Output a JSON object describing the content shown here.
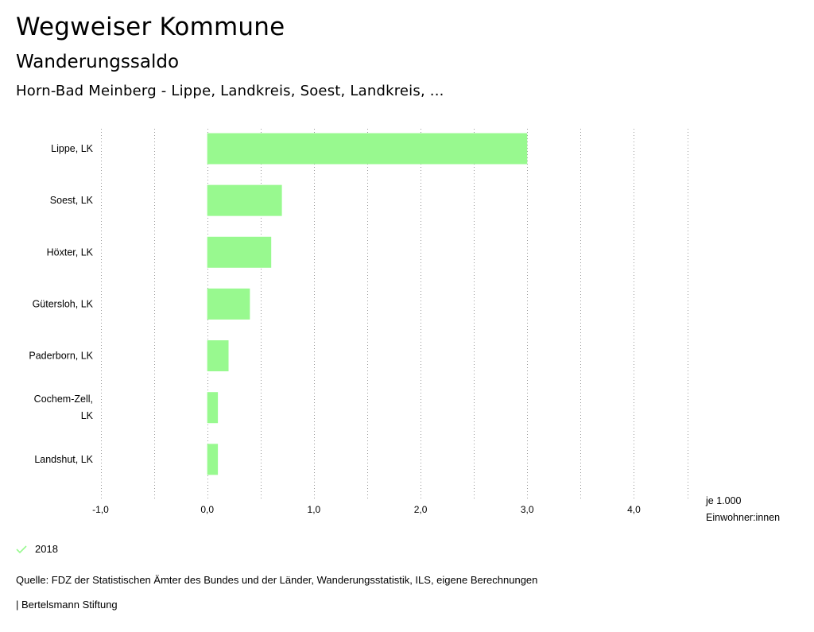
{
  "header": {
    "title": "Wegweiser Kommune",
    "subtitle": "Wanderungssaldo",
    "region": "Horn-Bad Meinberg - Lippe, Landkreis, Soest, Landkreis, ..."
  },
  "colors": {
    "bar": "#98f98f",
    "grid": "#999999",
    "text": "#000000"
  },
  "chart_data": {
    "type": "bar",
    "orientation": "horizontal",
    "title": "Wanderungssaldo",
    "categories": [
      [
        "Lippe, LK"
      ],
      [
        "Soest, LK"
      ],
      [
        "Höxter, LK"
      ],
      [
        "Gütersloh, LK"
      ],
      [
        "Paderborn, LK"
      ],
      [
        "Cochem-Zell,",
        "LK"
      ],
      [
        "Landshut, LK"
      ]
    ],
    "series": [
      {
        "name": "2018",
        "values": [
          3.0,
          0.7,
          0.6,
          0.4,
          0.2,
          0.1,
          0.1
        ]
      }
    ],
    "xlim": [
      -1.0,
      4.5
    ],
    "xticks": [
      -1.0,
      0.0,
      1.0,
      2.0,
      3.0,
      4.0
    ],
    "xtick_labels": [
      "-1,0",
      "0,0",
      "1,0",
      "2,0",
      "3,0",
      "4,0"
    ],
    "minor_grid_step": 0.5,
    "xlabel": [
      "je 1.000",
      "Einwohner:innen"
    ],
    "grid": true,
    "legend_position": "bottom-left"
  },
  "legend": {
    "label": "2018"
  },
  "footer": {
    "source": "Quelle: FDZ der Statistischen Ämter des Bundes und der Länder, Wanderungsstatistik, ILS, eigene Berechnungen",
    "credit": "| Bertelsmann Stiftung"
  }
}
